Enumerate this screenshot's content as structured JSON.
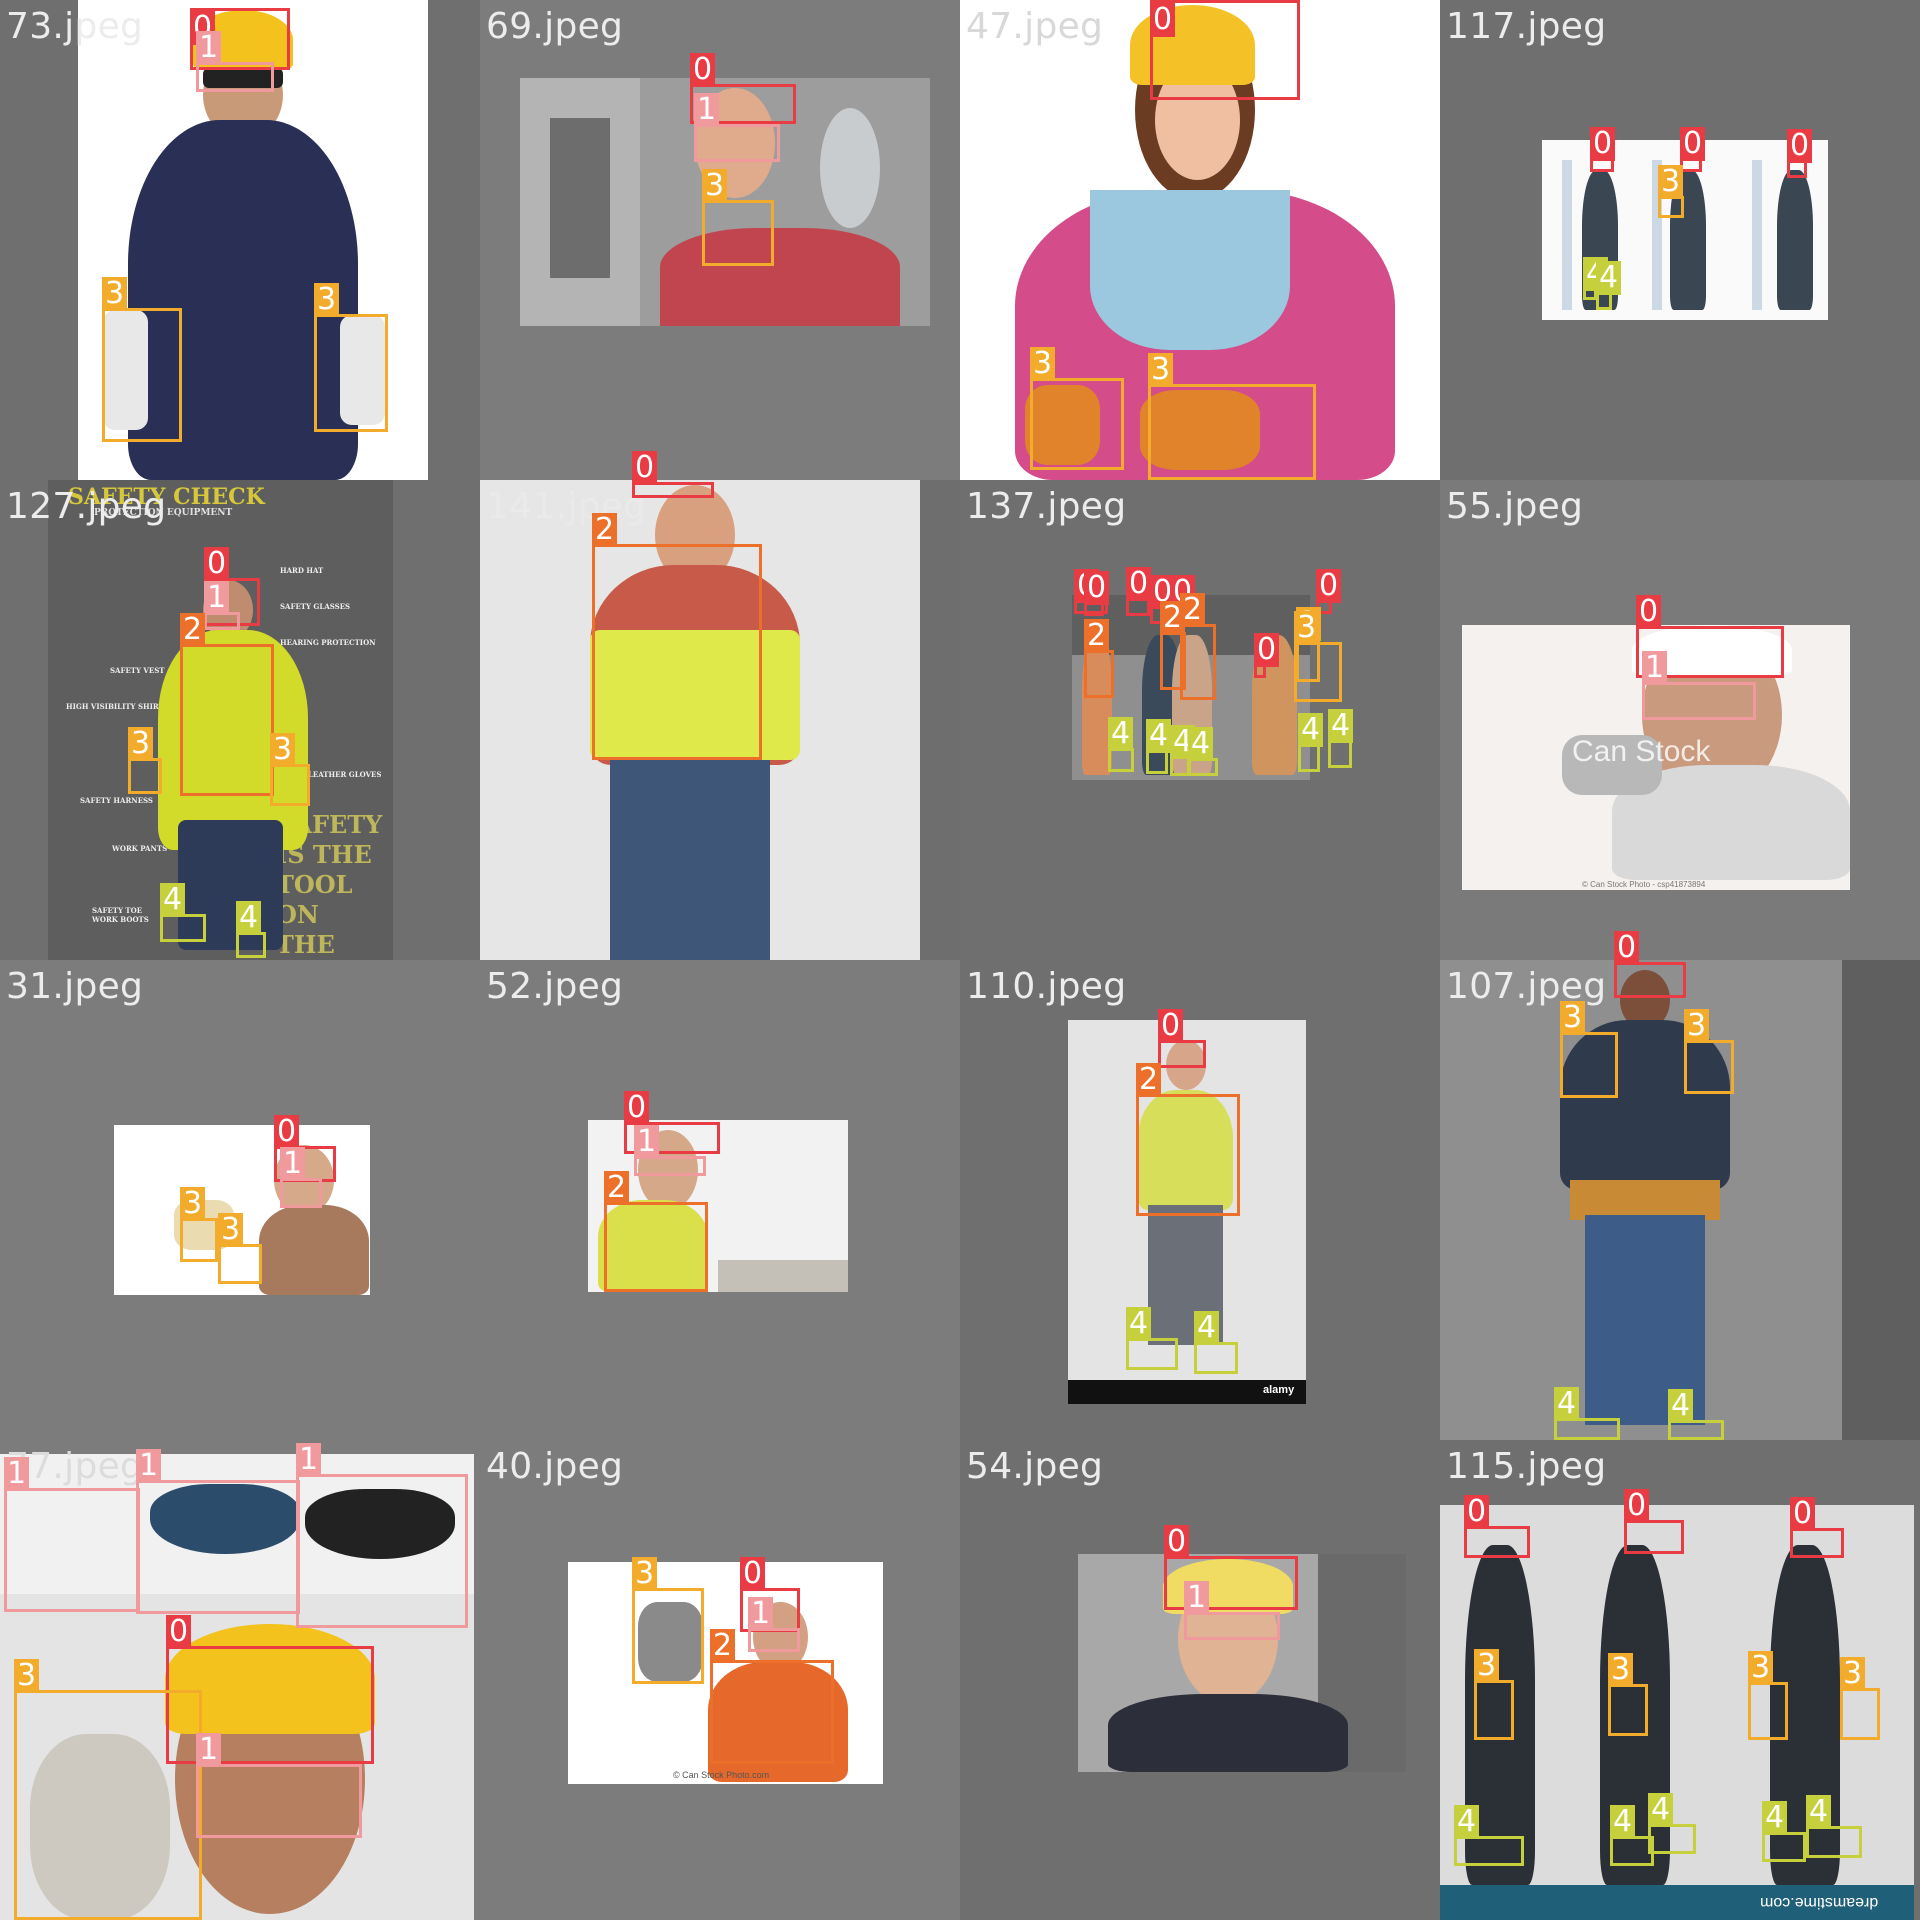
{
  "grid": {
    "rows": 4,
    "cols": 4
  },
  "class_colors": {
    "0": "#e93b43",
    "1": "#f19a9e",
    "2": "#ec6f2a",
    "3": "#f2ab2b",
    "4": "#c6cf3c"
  },
  "tiles": [
    {
      "name": "73.jpeg"
    },
    {
      "name": "69.jpeg"
    },
    {
      "name": "47.jpeg"
    },
    {
      "name": "117.jpeg"
    },
    {
      "name": "127.jpeg",
      "poster_title": "SAFETY CHECK",
      "poster_subtitle": "PROTECTION EQUIPMENT",
      "poster_labels": [
        "HARD HAT",
        "SAFETY GLASSES",
        "HEARING PROTECTION",
        "SAFETY VEST",
        "HIGH VISIBILITY SHIRT",
        "LEATHER GLOVES",
        "SAFETY HARNESS",
        "WORK PANTS",
        "SAFETY TOE WORK BOOTS"
      ],
      "poster_slogan": "SAFETY IS THE TOOL ON THE JOB"
    },
    {
      "name": "141.jpeg"
    },
    {
      "name": "137.jpeg"
    },
    {
      "name": "55.jpeg",
      "watermark": "Can Stock",
      "credit": "© Can Stock Photo - csp41873894"
    },
    {
      "name": "31.jpeg"
    },
    {
      "name": "52.jpeg"
    },
    {
      "name": "110.jpeg",
      "watermark": "alamy"
    },
    {
      "name": "107.jpeg"
    },
    {
      "name": "77.jpeg"
    },
    {
      "name": "40.jpeg",
      "credit": "© Can Stock Photo.com"
    },
    {
      "name": "54.jpeg"
    },
    {
      "name": "115.jpeg",
      "credit": "dreamstime.com"
    }
  ],
  "detections": [
    {
      "tile": 0,
      "cls": "0"
    },
    {
      "tile": 0,
      "cls": "1"
    },
    {
      "tile": 0,
      "cls": "3"
    },
    {
      "tile": 0,
      "cls": "3"
    },
    {
      "tile": 1,
      "cls": "0"
    },
    {
      "tile": 1,
      "cls": "1"
    },
    {
      "tile": 1,
      "cls": "3"
    },
    {
      "tile": 2,
      "cls": "0"
    },
    {
      "tile": 2,
      "cls": "3"
    },
    {
      "tile": 2,
      "cls": "3"
    },
    {
      "tile": 3,
      "cls": "0"
    },
    {
      "tile": 3,
      "cls": "0"
    },
    {
      "tile": 3,
      "cls": "0"
    },
    {
      "tile": 3,
      "cls": "3"
    },
    {
      "tile": 3,
      "cls": "4"
    },
    {
      "tile": 3,
      "cls": "4"
    },
    {
      "tile": 4,
      "cls": "0"
    },
    {
      "tile": 4,
      "cls": "1"
    },
    {
      "tile": 4,
      "cls": "2"
    },
    {
      "tile": 4,
      "cls": "3"
    },
    {
      "tile": 4,
      "cls": "3"
    },
    {
      "tile": 4,
      "cls": "4"
    },
    {
      "tile": 4,
      "cls": "4"
    },
    {
      "tile": 5,
      "cls": "0"
    },
    {
      "tile": 5,
      "cls": "2"
    },
    {
      "tile": 6,
      "cls": "0"
    },
    {
      "tile": 6,
      "cls": "0"
    },
    {
      "tile": 6,
      "cls": "0"
    },
    {
      "tile": 6,
      "cls": "0"
    },
    {
      "tile": 6,
      "cls": "0"
    },
    {
      "tile": 6,
      "cls": "0"
    },
    {
      "tile": 6,
      "cls": "0"
    },
    {
      "tile": 6,
      "cls": "2"
    },
    {
      "tile": 6,
      "cls": "2"
    },
    {
      "tile": 6,
      "cls": "2"
    },
    {
      "tile": 6,
      "cls": "3"
    },
    {
      "tile": 6,
      "cls": "3"
    },
    {
      "tile": 6,
      "cls": "4"
    },
    {
      "tile": 6,
      "cls": "4"
    },
    {
      "tile": 6,
      "cls": "4"
    },
    {
      "tile": 6,
      "cls": "4"
    },
    {
      "tile": 6,
      "cls": "4"
    },
    {
      "tile": 6,
      "cls": "4"
    },
    {
      "tile": 7,
      "cls": "0"
    },
    {
      "tile": 7,
      "cls": "1"
    },
    {
      "tile": 8,
      "cls": "0"
    },
    {
      "tile": 8,
      "cls": "1"
    },
    {
      "tile": 8,
      "cls": "3"
    },
    {
      "tile": 8,
      "cls": "3"
    },
    {
      "tile": 9,
      "cls": "0"
    },
    {
      "tile": 9,
      "cls": "1"
    },
    {
      "tile": 9,
      "cls": "2"
    },
    {
      "tile": 10,
      "cls": "0"
    },
    {
      "tile": 10,
      "cls": "2"
    },
    {
      "tile": 10,
      "cls": "4"
    },
    {
      "tile": 10,
      "cls": "4"
    },
    {
      "tile": 11,
      "cls": "0"
    },
    {
      "tile": 11,
      "cls": "3"
    },
    {
      "tile": 11,
      "cls": "3"
    },
    {
      "tile": 11,
      "cls": "4"
    },
    {
      "tile": 11,
      "cls": "4"
    },
    {
      "tile": 12,
      "cls": "1"
    },
    {
      "tile": 12,
      "cls": "1"
    },
    {
      "tile": 12,
      "cls": "1"
    },
    {
      "tile": 12,
      "cls": "0"
    },
    {
      "tile": 12,
      "cls": "3"
    },
    {
      "tile": 12,
      "cls": "1"
    },
    {
      "tile": 13,
      "cls": "3"
    },
    {
      "tile": 13,
      "cls": "0"
    },
    {
      "tile": 13,
      "cls": "1"
    },
    {
      "tile": 13,
      "cls": "2"
    },
    {
      "tile": 14,
      "cls": "0"
    },
    {
      "tile": 14,
      "cls": "1"
    },
    {
      "tile": 15,
      "cls": "0"
    },
    {
      "tile": 15,
      "cls": "0"
    },
    {
      "tile": 15,
      "cls": "0"
    },
    {
      "tile": 15,
      "cls": "3"
    },
    {
      "tile": 15,
      "cls": "3"
    },
    {
      "tile": 15,
      "cls": "3"
    },
    {
      "tile": 15,
      "cls": "3"
    },
    {
      "tile": 15,
      "cls": "4"
    },
    {
      "tile": 15,
      "cls": "4"
    },
    {
      "tile": 15,
      "cls": "4"
    },
    {
      "tile": 15,
      "cls": "4"
    },
    {
      "tile": 15,
      "cls": "4"
    }
  ]
}
